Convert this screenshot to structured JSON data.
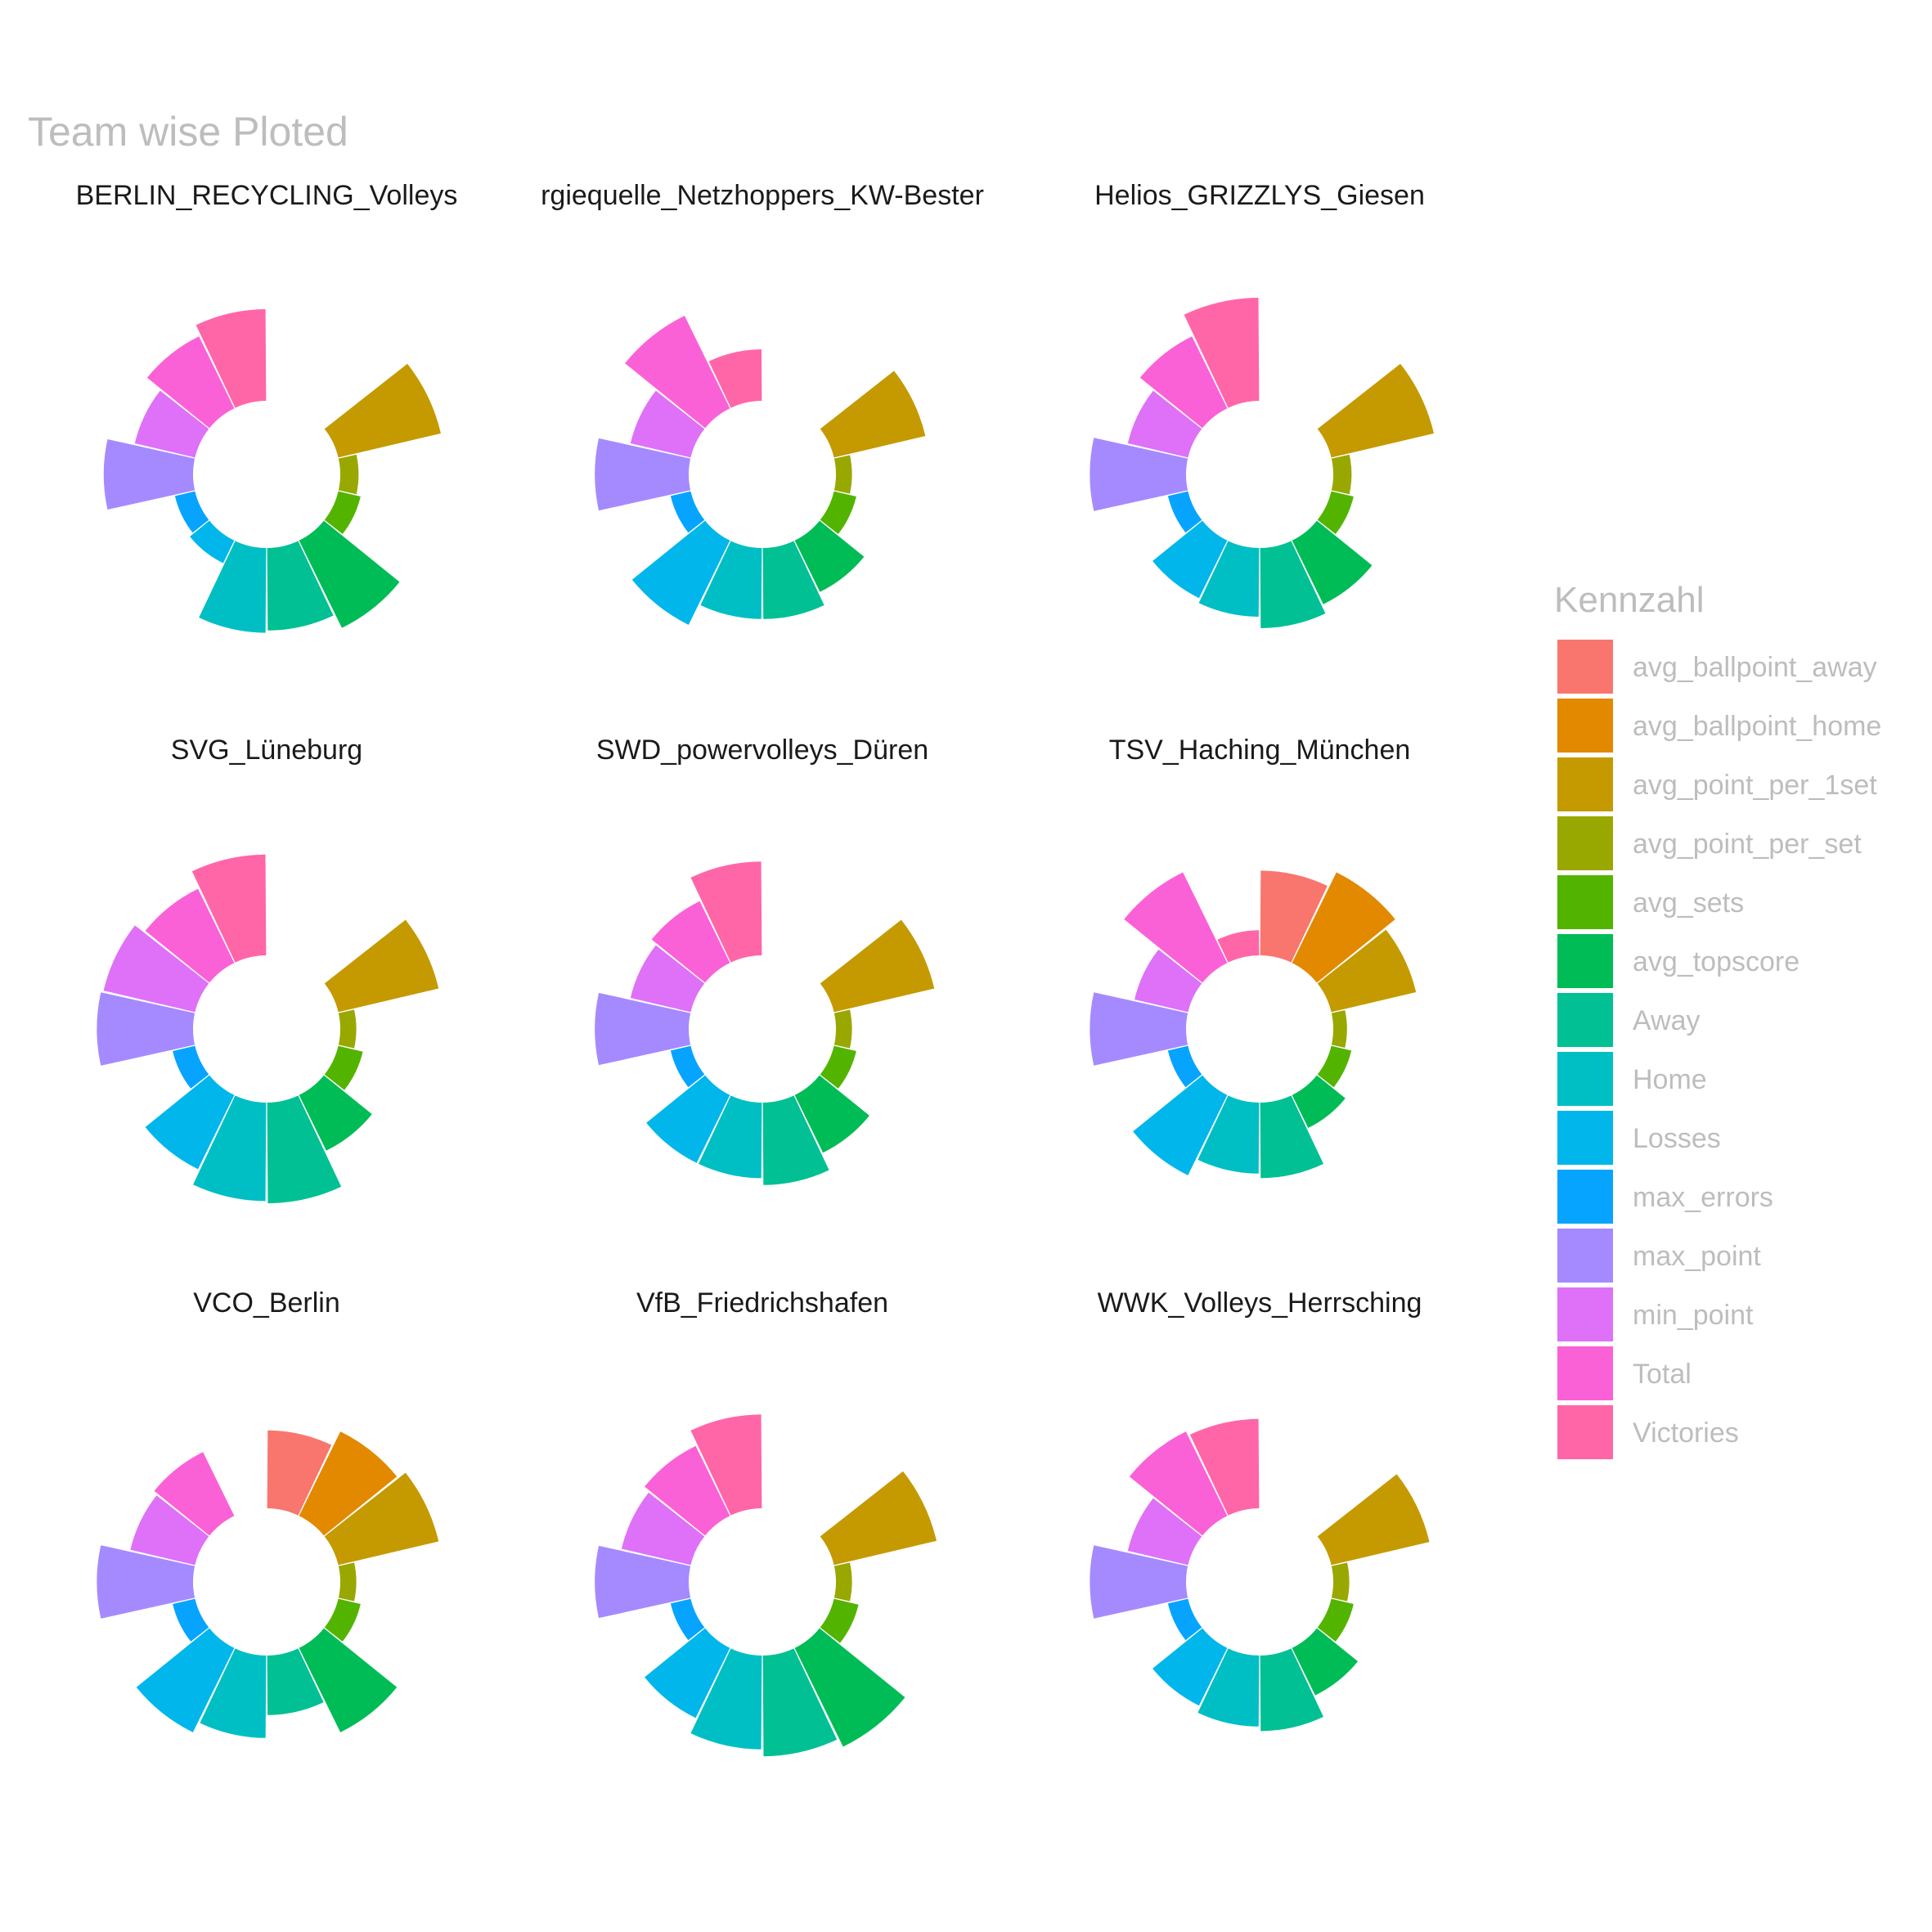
{
  "chart_data": {
    "type": "bar",
    "coord": "polar",
    "title": "Team wise Ploted",
    "legend": {
      "title": "Kennzahl",
      "position": "right",
      "entries": [
        "avg_ballpoint_away",
        "avg_ballpoint_home",
        "avg_point_per_1set",
        "avg_point_per_set",
        "avg_sets",
        "avg_topscore",
        "Away",
        "Home",
        "Losses",
        "max_errors",
        "max_point",
        "min_point",
        "Total",
        "Victories"
      ]
    },
    "colors": {
      "avg_ballpoint_away": "#F8766D",
      "avg_ballpoint_home": "#E38900",
      "avg_point_per_1set": "#C49A00",
      "avg_point_per_set": "#99A800",
      "avg_sets": "#53B400",
      "avg_topscore": "#00BC56",
      "Away": "#00C094",
      "Home": "#00BFC4",
      "Losses": "#00B6EB",
      "max_errors": "#06A4FF",
      "max_point": "#A58AFF",
      "min_point": "#DF70F8",
      "Total": "#FB61D7",
      "Victories": "#FF66A8"
    },
    "value_scale": [
      0,
      100
    ],
    "facets": [
      {
        "name": "BERLIN_RECYCLING_Volleys",
        "values": {
          "avg_ballpoint_away": 0,
          "avg_ballpoint_home": 0,
          "avg_point_per_1set": 92,
          "avg_point_per_set": 16,
          "avg_sets": 20,
          "avg_topscore": 85,
          "Away": 72,
          "Home": 74,
          "Losses": 22,
          "max_errors": 18,
          "max_point": 78,
          "min_point": 54,
          "Total": 70,
          "Victories": 80
        }
      },
      {
        "name": "rgiequelle_Netzhoppers_KW-Bester",
        "values": {
          "avg_ballpoint_away": 0,
          "avg_ballpoint_home": 0,
          "avg_point_per_1set": 82,
          "avg_point_per_set": 14,
          "avg_sets": 20,
          "avg_topscore": 50,
          "Away": 62,
          "Home": 62,
          "Losses": 82,
          "max_errors": 18,
          "max_point": 82,
          "min_point": 54,
          "Total": 90,
          "Victories": 45
        }
      },
      {
        "name": "Helios_GRIZZLYS_Giesen",
        "values": {
          "avg_ballpoint_away": 0,
          "avg_ballpoint_home": 0,
          "avg_point_per_1set": 92,
          "avg_point_per_set": 16,
          "avg_sets": 20,
          "avg_topscore": 62,
          "Away": 70,
          "Home": 60,
          "Losses": 56,
          "max_errors": 18,
          "max_point": 84,
          "min_point": 54,
          "Total": 70,
          "Victories": 90
        }
      },
      {
        "name": "SVG_Lüneburg",
        "values": {
          "avg_ballpoint_away": 0,
          "avg_ballpoint_home": 0,
          "avg_point_per_1set": 90,
          "avg_point_per_set": 14,
          "avg_sets": 22,
          "avg_topscore": 54,
          "Away": 88,
          "Home": 86,
          "Losses": 72,
          "max_errors": 20,
          "max_point": 84,
          "min_point": 82,
          "Total": 72,
          "Victories": 88
        }
      },
      {
        "name": "SWD_powervolleys_Düren",
        "values": {
          "avg_ballpoint_away": 0,
          "avg_ballpoint_home": 0,
          "avg_point_per_1set": 90,
          "avg_point_per_set": 14,
          "avg_sets": 20,
          "avg_topscore": 56,
          "Away": 72,
          "Home": 66,
          "Losses": 66,
          "max_errors": 18,
          "max_point": 82,
          "min_point": 54,
          "Total": 60,
          "Victories": 82
        }
      },
      {
        "name": "TSV_Haching_München",
        "values": {
          "avg_ballpoint_away": 74,
          "avg_ballpoint_home": 88,
          "avg_point_per_1set": 76,
          "avg_point_per_set": 12,
          "avg_sets": 18,
          "avg_topscore": 32,
          "Away": 66,
          "Home": 62,
          "Losses": 78,
          "max_errors": 18,
          "max_point": 84,
          "min_point": 48,
          "Total": 88,
          "Victories": 22
        }
      },
      {
        "name": "VCO_Berlin",
        "values": {
          "avg_ballpoint_away": 68,
          "avg_ballpoint_home": 82,
          "avg_point_per_1set": 90,
          "avg_point_per_set": 14,
          "avg_sets": 20,
          "avg_topscore": 82,
          "Away": 52,
          "Home": 72,
          "Losses": 82,
          "max_errors": 20,
          "max_point": 84,
          "min_point": 58,
          "Total": 62,
          "Victories": 0
        }
      },
      {
        "name": "VfB_Friedrichshafen",
        "values": {
          "avg_ballpoint_away": 0,
          "avg_ballpoint_home": 0,
          "avg_point_per_1set": 92,
          "avg_point_per_set": 14,
          "avg_sets": 22,
          "avg_topscore": 96,
          "Away": 88,
          "Home": 82,
          "Losses": 68,
          "max_errors": 18,
          "max_point": 82,
          "min_point": 62,
          "Total": 68,
          "Victories": 82
        }
      },
      {
        "name": "WWK_Volleys_Herrsching",
        "values": {
          "avg_ballpoint_away": 0,
          "avg_ballpoint_home": 0,
          "avg_point_per_1set": 88,
          "avg_point_per_set": 14,
          "avg_sets": 20,
          "avg_topscore": 46,
          "Away": 66,
          "Home": 62,
          "Losses": 56,
          "max_errors": 18,
          "max_point": 84,
          "min_point": 54,
          "Total": 82,
          "Victories": 78
        }
      }
    ]
  }
}
